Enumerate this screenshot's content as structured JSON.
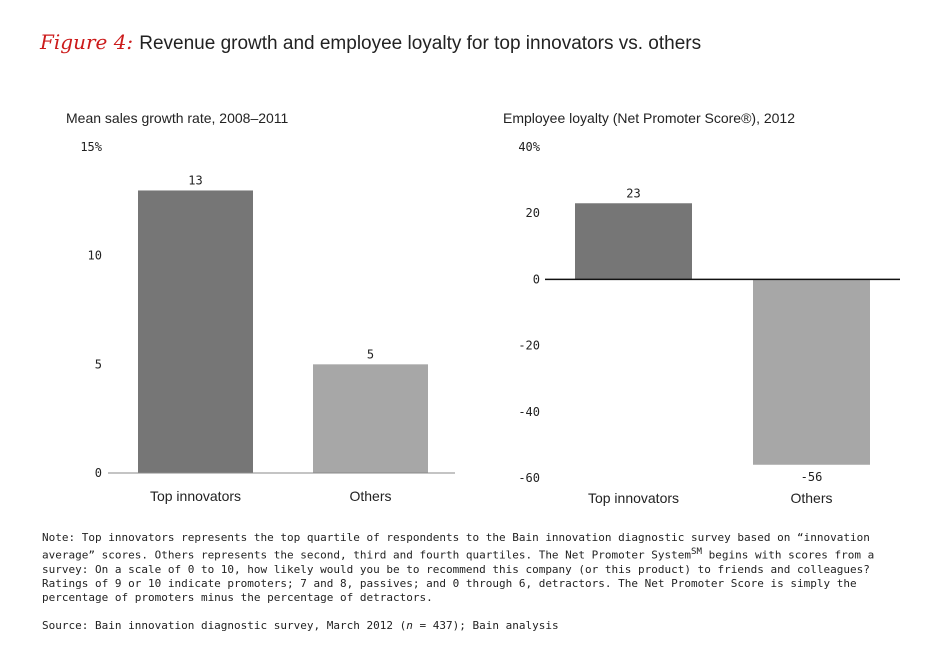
{
  "figure": {
    "label": "Figure 4:",
    "title": "Revenue growth and employee loyalty for top innovators vs. others"
  },
  "colors": {
    "top_innovators": "#767676",
    "others": "#a7a7a7",
    "accent": "#cc1b1b"
  },
  "chart_data": [
    {
      "type": "bar",
      "title": "Mean sales growth rate, 2008–2011",
      "categories": [
        "Top innovators",
        "Others"
      ],
      "values": [
        13,
        5
      ],
      "data_labels": [
        "13",
        "5"
      ],
      "ylim": [
        0,
        15
      ],
      "yticks": [
        0,
        5,
        10,
        15
      ],
      "ytick_labels": [
        "0",
        "5",
        "10",
        "15%"
      ],
      "grid": false
    },
    {
      "type": "bar",
      "title": "Employee loyalty (Net Promoter Score®), 2012",
      "categories": [
        "Top innovators",
        "Others"
      ],
      "values": [
        23,
        -56
      ],
      "data_labels": [
        "23",
        "-56"
      ],
      "ylim": [
        -60,
        40
      ],
      "yticks": [
        -60,
        -40,
        -20,
        0,
        20,
        40
      ],
      "ytick_labels": [
        "-60",
        "-40",
        "-20",
        "0",
        "20",
        "40%"
      ],
      "grid": false
    }
  ],
  "note": {
    "part1": "Note: Top innovators represents the top quartile of respondents to the Bain innovation diagnostic survey based on “innovation average” scores. Others represents the second, third and fourth quartiles. The Net Promoter System",
    "superscript": "SM",
    "part2": " begins with scores from a survey: On a scale of 0 to 10, how likely would you be to recommend this company (or this product) to friends and colleagues? Ratings of 9 or 10 indicate promoters; 7 and 8, passives; and 0 through 6, detractors. The Net Promoter Score is simply the percentage of promoters minus the percentage of detractors."
  },
  "source": {
    "prefix": "Source: Bain innovation diagnostic survey, March 2012 (",
    "n_symbol": "n",
    "suffix": " = 437); Bain analysis"
  }
}
